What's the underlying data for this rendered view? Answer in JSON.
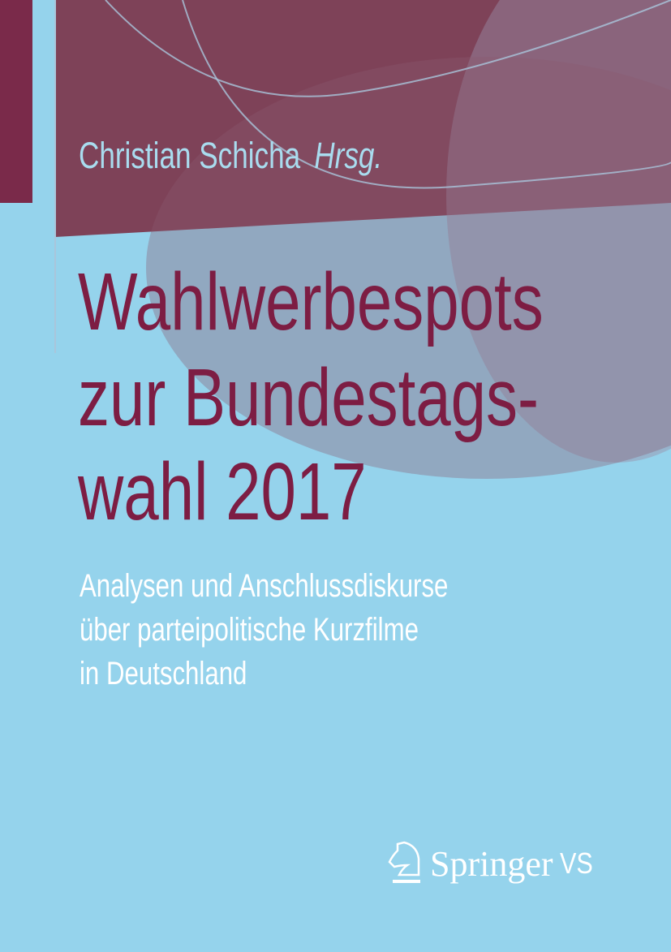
{
  "cover": {
    "author": "Christian Schicha",
    "author_role": "Hrsg.",
    "title_lines": [
      "Wahlwerbespots",
      "zur Bundestags-",
      "wahl 2017"
    ],
    "subtitle_lines": [
      "Analysen und Anschlussdiskurse",
      "über parteipolitische Kurzfilme",
      "in Deutschland"
    ],
    "publisher": {
      "name": "Springer",
      "imprint": "VS",
      "logo_icon": "knight-horse-icon"
    },
    "colors": {
      "background": "#95d3ec",
      "band": "#7e4258",
      "title": "#7d1d43",
      "text": "#ffffff"
    }
  }
}
